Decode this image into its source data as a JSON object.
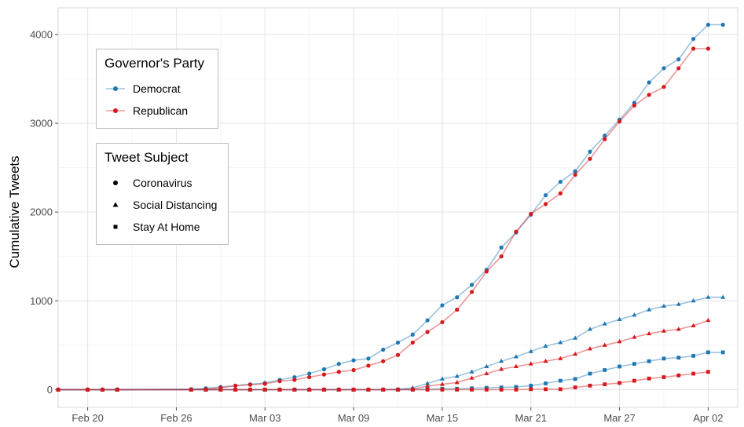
{
  "chart_data": {
    "type": "line",
    "ylabel": "Cumulative Tweets",
    "xlabel": "",
    "x_ticks": [
      "Feb 20",
      "Feb 26",
      "Mar 03",
      "Mar 09",
      "Mar 15",
      "Mar 21",
      "Mar 27",
      "Apr 02"
    ],
    "y_ticks": [
      "0",
      "1000",
      "2000",
      "3000",
      "4000"
    ],
    "ylim": [
      -200,
      4300
    ],
    "xlim": [
      "2020-02-18",
      "2020-04-04"
    ],
    "grid": true,
    "colors": {
      "Democrat": "#1f78b4",
      "Republican": "#d7191c"
    },
    "legends": [
      {
        "title": "Governor's Party",
        "items": [
          "Democrat",
          "Republican"
        ]
      },
      {
        "title": "Tweet Subject",
        "items": [
          {
            "label": "Coronavirus",
            "shape": "circle"
          },
          {
            "label": "Social Distancing",
            "shape": "triangle"
          },
          {
            "label": "Stay At Home",
            "shape": "square"
          }
        ]
      }
    ],
    "series": [
      {
        "party": "Democrat",
        "subject": "Coronavirus",
        "x": [
          "2020-02-18",
          "2020-02-20",
          "2020-02-21",
          "2020-02-22",
          "2020-02-27",
          "2020-02-28",
          "2020-02-29",
          "2020-03-01",
          "2020-03-02",
          "2020-03-03",
          "2020-03-04",
          "2020-03-05",
          "2020-03-06",
          "2020-03-07",
          "2020-03-08",
          "2020-03-09",
          "2020-03-10",
          "2020-03-11",
          "2020-03-12",
          "2020-03-13",
          "2020-03-14",
          "2020-03-15",
          "2020-03-16",
          "2020-03-17",
          "2020-03-18",
          "2020-03-19",
          "2020-03-20",
          "2020-03-21",
          "2020-03-22",
          "2020-03-23",
          "2020-03-24",
          "2020-03-25",
          "2020-03-26",
          "2020-03-27",
          "2020-03-28",
          "2020-03-29",
          "2020-03-30",
          "2020-03-31",
          "2020-04-01",
          "2020-04-02",
          "2020-04-03"
        ],
        "y": [
          0,
          0,
          0,
          0,
          5,
          15,
          30,
          45,
          60,
          75,
          110,
          140,
          180,
          230,
          290,
          330,
          350,
          450,
          530,
          620,
          780,
          950,
          1040,
          1180,
          1350,
          1600,
          1770,
          1970,
          2190,
          2340,
          2460,
          2680,
          2860,
          3040,
          3230,
          3460,
          3620,
          3720,
          3950,
          4110,
          4110
        ]
      },
      {
        "party": "Republican",
        "subject": "Coronavirus",
        "x": [
          "2020-02-18",
          "2020-02-20",
          "2020-02-21",
          "2020-02-22",
          "2020-02-27",
          "2020-02-28",
          "2020-02-29",
          "2020-03-01",
          "2020-03-02",
          "2020-03-03",
          "2020-03-04",
          "2020-03-05",
          "2020-03-06",
          "2020-03-07",
          "2020-03-08",
          "2020-03-09",
          "2020-03-10",
          "2020-03-11",
          "2020-03-12",
          "2020-03-13",
          "2020-03-14",
          "2020-03-15",
          "2020-03-16",
          "2020-03-17",
          "2020-03-18",
          "2020-03-19",
          "2020-03-20",
          "2020-03-21",
          "2020-03-22",
          "2020-03-23",
          "2020-03-24",
          "2020-03-25",
          "2020-03-26",
          "2020-03-27",
          "2020-03-28",
          "2020-03-29",
          "2020-03-30",
          "2020-03-31",
          "2020-04-01",
          "2020-04-02"
        ],
        "y": [
          0,
          0,
          0,
          0,
          0,
          5,
          20,
          45,
          55,
          65,
          95,
          110,
          140,
          170,
          200,
          220,
          270,
          320,
          390,
          530,
          650,
          760,
          900,
          1100,
          1330,
          1500,
          1780,
          1980,
          2090,
          2210,
          2420,
          2600,
          2820,
          3020,
          3200,
          3320,
          3410,
          3620,
          3840,
          3840
        ]
      },
      {
        "party": "Democrat",
        "subject": "Social Distancing",
        "x": [
          "2020-02-18",
          "2020-02-20",
          "2020-02-21",
          "2020-02-22",
          "2020-02-27",
          "2020-02-28",
          "2020-02-29",
          "2020-03-01",
          "2020-03-02",
          "2020-03-03",
          "2020-03-04",
          "2020-03-05",
          "2020-03-06",
          "2020-03-07",
          "2020-03-08",
          "2020-03-09",
          "2020-03-10",
          "2020-03-11",
          "2020-03-12",
          "2020-03-13",
          "2020-03-14",
          "2020-03-15",
          "2020-03-16",
          "2020-03-17",
          "2020-03-18",
          "2020-03-19",
          "2020-03-20",
          "2020-03-21",
          "2020-03-22",
          "2020-03-23",
          "2020-03-24",
          "2020-03-25",
          "2020-03-26",
          "2020-03-27",
          "2020-03-28",
          "2020-03-29",
          "2020-03-30",
          "2020-03-31",
          "2020-04-01",
          "2020-04-02",
          "2020-04-03"
        ],
        "y": [
          0,
          0,
          0,
          0,
          0,
          0,
          0,
          0,
          0,
          0,
          0,
          0,
          0,
          0,
          0,
          0,
          0,
          0,
          5,
          20,
          70,
          120,
          150,
          200,
          260,
          320,
          370,
          430,
          490,
          530,
          580,
          680,
          740,
          790,
          840,
          900,
          940,
          960,
          1000,
          1040,
          1040
        ]
      },
      {
        "party": "Republican",
        "subject": "Social Distancing",
        "x": [
          "2020-02-18",
          "2020-02-20",
          "2020-02-21",
          "2020-02-22",
          "2020-02-27",
          "2020-02-28",
          "2020-02-29",
          "2020-03-01",
          "2020-03-02",
          "2020-03-03",
          "2020-03-04",
          "2020-03-05",
          "2020-03-06",
          "2020-03-07",
          "2020-03-08",
          "2020-03-09",
          "2020-03-10",
          "2020-03-11",
          "2020-03-12",
          "2020-03-13",
          "2020-03-14",
          "2020-03-15",
          "2020-03-16",
          "2020-03-17",
          "2020-03-18",
          "2020-03-19",
          "2020-03-20",
          "2020-03-21",
          "2020-03-22",
          "2020-03-23",
          "2020-03-24",
          "2020-03-25",
          "2020-03-26",
          "2020-03-27",
          "2020-03-28",
          "2020-03-29",
          "2020-03-30",
          "2020-03-31",
          "2020-04-01",
          "2020-04-02"
        ],
        "y": [
          0,
          0,
          0,
          0,
          0,
          0,
          0,
          0,
          0,
          0,
          0,
          0,
          0,
          0,
          0,
          0,
          0,
          0,
          0,
          5,
          40,
          60,
          80,
          130,
          180,
          230,
          260,
          290,
          320,
          350,
          400,
          460,
          500,
          540,
          590,
          630,
          660,
          680,
          720,
          780
        ]
      },
      {
        "party": "Democrat",
        "subject": "Stay At Home",
        "x": [
          "2020-02-18",
          "2020-02-20",
          "2020-02-21",
          "2020-02-22",
          "2020-02-27",
          "2020-02-28",
          "2020-02-29",
          "2020-03-01",
          "2020-03-02",
          "2020-03-03",
          "2020-03-04",
          "2020-03-05",
          "2020-03-06",
          "2020-03-07",
          "2020-03-08",
          "2020-03-09",
          "2020-03-10",
          "2020-03-11",
          "2020-03-12",
          "2020-03-13",
          "2020-03-14",
          "2020-03-15",
          "2020-03-16",
          "2020-03-17",
          "2020-03-18",
          "2020-03-19",
          "2020-03-20",
          "2020-03-21",
          "2020-03-22",
          "2020-03-23",
          "2020-03-24",
          "2020-03-25",
          "2020-03-26",
          "2020-03-27",
          "2020-03-28",
          "2020-03-29",
          "2020-03-30",
          "2020-03-31",
          "2020-04-01",
          "2020-04-02",
          "2020-04-03"
        ],
        "y": [
          0,
          0,
          0,
          0,
          0,
          0,
          0,
          0,
          0,
          0,
          0,
          0,
          0,
          0,
          0,
          0,
          0,
          0,
          0,
          0,
          5,
          10,
          10,
          15,
          20,
          25,
          30,
          45,
          70,
          100,
          120,
          180,
          220,
          260,
          290,
          320,
          350,
          360,
          380,
          420,
          420
        ]
      },
      {
        "party": "Republican",
        "subject": "Stay At Home",
        "x": [
          "2020-02-18",
          "2020-02-20",
          "2020-02-21",
          "2020-02-22",
          "2020-02-27",
          "2020-02-28",
          "2020-02-29",
          "2020-03-01",
          "2020-03-02",
          "2020-03-03",
          "2020-03-04",
          "2020-03-05",
          "2020-03-06",
          "2020-03-07",
          "2020-03-08",
          "2020-03-09",
          "2020-03-10",
          "2020-03-11",
          "2020-03-12",
          "2020-03-13",
          "2020-03-14",
          "2020-03-15",
          "2020-03-16",
          "2020-03-17",
          "2020-03-18",
          "2020-03-19",
          "2020-03-20",
          "2020-03-21",
          "2020-03-22",
          "2020-03-23",
          "2020-03-24",
          "2020-03-25",
          "2020-03-26",
          "2020-03-27",
          "2020-03-28",
          "2020-03-29",
          "2020-03-30",
          "2020-03-31",
          "2020-04-01",
          "2020-04-02"
        ],
        "y": [
          0,
          0,
          0,
          0,
          0,
          0,
          0,
          0,
          0,
          0,
          0,
          0,
          0,
          0,
          0,
          0,
          0,
          0,
          0,
          0,
          0,
          0,
          0,
          0,
          0,
          0,
          0,
          5,
          5,
          5,
          25,
          45,
          60,
          75,
          100,
          125,
          140,
          160,
          180,
          200
        ]
      }
    ]
  }
}
